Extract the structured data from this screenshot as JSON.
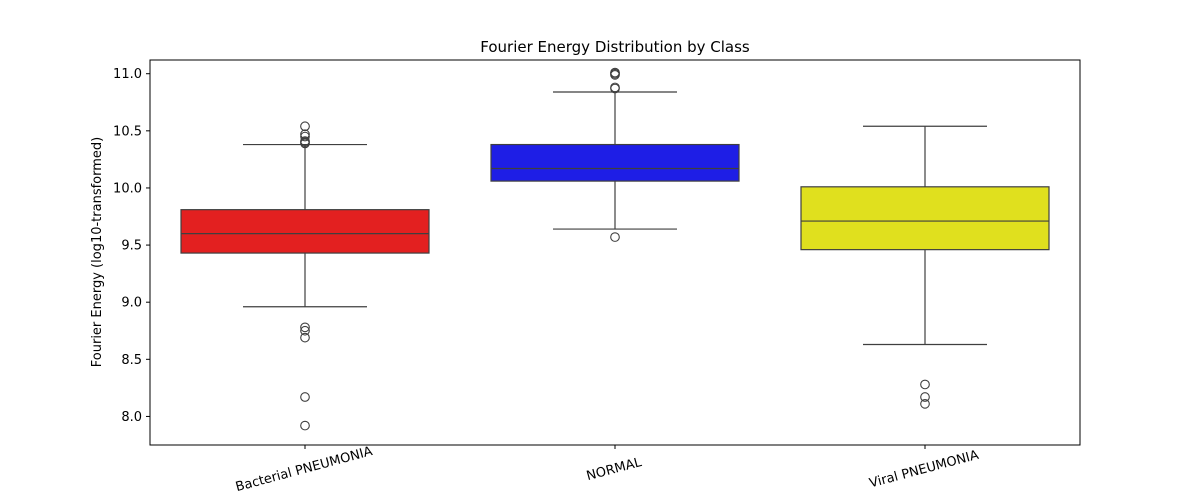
{
  "chart_data": {
    "type": "boxplot",
    "title": "Fourier Energy Distribution by Class",
    "xlabel": "",
    "ylabel": "Fourier Energy (log10-transformed)",
    "ylim": [
      7.75,
      11.12
    ],
    "yticks": [
      "8.0",
      "8.5",
      "9.0",
      "9.5",
      "10.0",
      "10.5",
      "11.0"
    ],
    "grid": false,
    "categories": [
      "Bacterial PNEUMONIA",
      "NORMAL",
      "Viral PNEUMONIA"
    ],
    "boxes": [
      {
        "category": "Bacterial PNEUMONIA",
        "color": "#e32020",
        "whisker_low": 8.96,
        "q1": 9.43,
        "median": 9.6,
        "q3": 9.81,
        "whisker_high": 10.38,
        "outliers": [
          10.54,
          10.47,
          10.45,
          10.41,
          10.4,
          10.39,
          8.78,
          8.75,
          8.69,
          8.17,
          7.92
        ]
      },
      {
        "category": "NORMAL",
        "color": "#1e1ee6",
        "whisker_low": 9.64,
        "q1": 10.06,
        "median": 10.17,
        "q3": 10.38,
        "whisker_high": 10.84,
        "outliers": [
          11.01,
          11.0,
          10.99,
          10.88,
          10.87,
          9.57
        ]
      },
      {
        "category": "Viral PNEUMONIA",
        "color": "#e0e01e",
        "whisker_low": 8.63,
        "q1": 9.46,
        "median": 9.71,
        "q3": 10.01,
        "whisker_high": 10.54,
        "outliers": [
          8.28,
          8.17,
          8.11
        ]
      }
    ]
  }
}
